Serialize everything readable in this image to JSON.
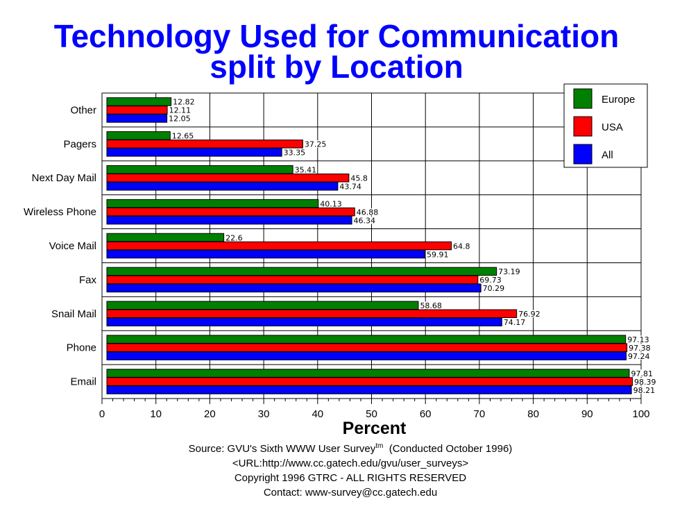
{
  "title": {
    "line1": "Technology Used for Communication",
    "line2": "split by Location"
  },
  "chart_data": {
    "type": "bar",
    "orientation": "horizontal",
    "title": "Technology Used for Communication split by Location",
    "xlabel": "Percent",
    "ylabel": "",
    "xlim": [
      0,
      100
    ],
    "x_ticks": [
      0,
      10,
      20,
      30,
      40,
      50,
      60,
      70,
      80,
      90,
      100
    ],
    "grid": true,
    "legend_position": "top-right",
    "categories": [
      "Other",
      "Pagers",
      "Next Day Mail",
      "Wireless Phone",
      "Voice Mail",
      "Fax",
      "Snail Mail",
      "Phone",
      "Email"
    ],
    "series": [
      {
        "name": "Europe",
        "color": "#008000",
        "values": [
          12.82,
          12.65,
          35.41,
          40.13,
          22.6,
          73.19,
          58.68,
          97.13,
          97.81
        ],
        "labels": [
          "12.82",
          "12.65",
          "35.41",
          "40.13",
          "22.6",
          "73.19",
          "58.68",
          "97.13",
          "97.81"
        ]
      },
      {
        "name": "USA",
        "color": "#ff0000",
        "values": [
          12.11,
          37.25,
          45.8,
          46.88,
          64.8,
          69.73,
          76.92,
          97.38,
          98.39
        ],
        "labels": [
          "12.11",
          "37.25",
          "45.8",
          "46.88",
          "64.8",
          "69.73",
          "76.92",
          "97.38",
          "98.39"
        ]
      },
      {
        "name": "All",
        "color": "#0000ff",
        "values": [
          12.05,
          33.35,
          43.74,
          46.34,
          59.91,
          70.29,
          74.17,
          97.24,
          98.21
        ],
        "labels": [
          "12.05",
          "33.35",
          "43.74",
          "46.34",
          "59.91",
          "70.29",
          "74.17",
          "97.24",
          "98.21"
        ]
      }
    ]
  },
  "footer": {
    "source_prefix": "Source: GVU's Sixth WWW User Survey",
    "source_tm": "tm",
    "source_suffix": "  (Conducted October 1996)",
    "url": "<URL:http://www.cc.gatech.edu/gvu/user_surveys>",
    "copyright": "Copyright 1996 GTRC -  ALL RIGHTS RESERVED",
    "contact": "Contact: www-survey@cc.gatech.edu"
  }
}
